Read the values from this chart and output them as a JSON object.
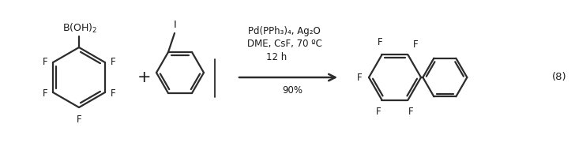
{
  "background_color": "#ffffff",
  "reaction_number": "(8)",
  "conditions_line1": "Pd(PPh₃)₄, Ag₂O",
  "conditions_line2": "DME, CsF, 70 ºC",
  "conditions_line3": "12 h",
  "conditions_line4": "90%",
  "text_color": "#1a1a1a",
  "line_color": "#2c2c2c",
  "bond_lw": 1.6,
  "font_size": 8.5
}
